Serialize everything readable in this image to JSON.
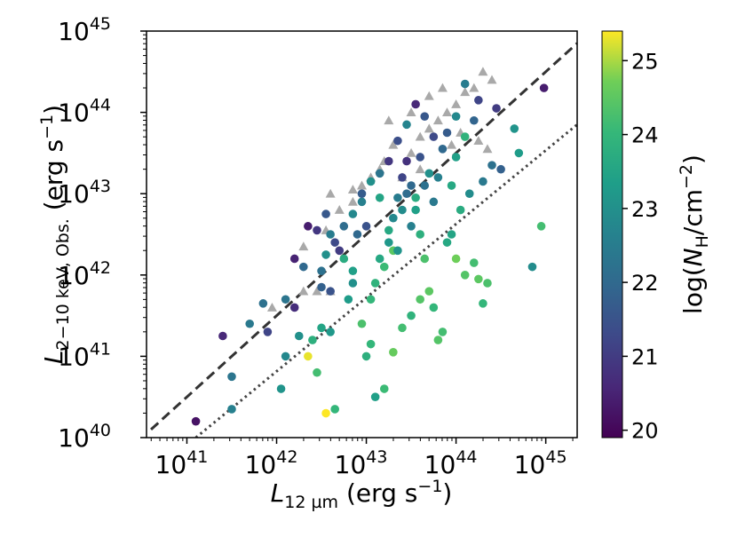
{
  "chart_data": {
    "type": "scatter",
    "title": "",
    "xlabel": "L_{12 µm} (erg s^{-1})",
    "ylabel": "L_{2-10 keV, Obs.} (erg s^{-1})",
    "xscale": "log",
    "yscale": "log",
    "xlim": [
      40.55,
      45.35
    ],
    "ylim": [
      40.0,
      45.0
    ],
    "x_ticks": [
      {
        "exp": 41,
        "label": "10",
        "sup": "41"
      },
      {
        "exp": 42,
        "label": "10",
        "sup": "42"
      },
      {
        "exp": 43,
        "label": "10",
        "sup": "43"
      },
      {
        "exp": 44,
        "label": "10",
        "sup": "44"
      },
      {
        "exp": 45,
        "label": "10",
        "sup": "45"
      }
    ],
    "y_ticks": [
      {
        "exp": 40,
        "label": "10",
        "sup": "40"
      },
      {
        "exp": 41,
        "label": "10",
        "sup": "41"
      },
      {
        "exp": 42,
        "label": "10",
        "sup": "42"
      },
      {
        "exp": 43,
        "label": "10",
        "sup": "43"
      },
      {
        "exp": 44,
        "label": "10",
        "sup": "44"
      },
      {
        "exp": 45,
        "label": "10",
        "sup": "45"
      }
    ],
    "colorbar": {
      "label": "log(N_H/cm^{-2})",
      "range": [
        19.9,
        25.4
      ],
      "ticks": [
        "20",
        "21",
        "22",
        "23",
        "24",
        "25"
      ],
      "colormap": "viridis"
    },
    "lines": [
      {
        "style": "dashed",
        "color": "#333333",
        "points": [
          [
            40.6,
            40.1
          ],
          [
            45.35,
            44.85
          ]
        ]
      },
      {
        "style": "dotted",
        "color": "#444444",
        "points": [
          [
            41.1,
            40.0
          ],
          [
            45.35,
            43.85
          ]
        ]
      }
    ],
    "series_upper_limits": {
      "marker": "triangle",
      "color": "#a9a9a9",
      "points": [
        [
          41.95,
          41.6
        ],
        [
          42.3,
          41.8
        ],
        [
          42.45,
          41.8
        ],
        [
          42.6,
          41.8
        ],
        [
          42.3,
          42.35
        ],
        [
          42.55,
          42.55
        ],
        [
          42.7,
          42.8
        ],
        [
          42.85,
          42.9
        ],
        [
          42.95,
          43.1
        ],
        [
          43.05,
          43.2
        ],
        [
          43.15,
          43.3
        ],
        [
          43.2,
          43.4
        ],
        [
          43.3,
          43.6
        ],
        [
          43.4,
          43.2
        ],
        [
          43.5,
          43.5
        ],
        [
          43.6,
          43.7
        ],
        [
          43.7,
          43.8
        ],
        [
          43.8,
          43.9
        ],
        [
          43.9,
          44.0
        ],
        [
          44.0,
          44.1
        ],
        [
          44.1,
          44.25
        ],
        [
          44.2,
          44.3
        ],
        [
          44.3,
          44.5
        ],
        [
          44.4,
          44.4
        ],
        [
          43.85,
          44.3
        ],
        [
          44.05,
          43.75
        ],
        [
          43.95,
          43.6
        ],
        [
          43.25,
          43.9
        ],
        [
          43.5,
          44.0
        ],
        [
          43.7,
          44.2
        ],
        [
          44.25,
          43.65
        ],
        [
          44.35,
          43.55
        ],
        [
          42.85,
          43.05
        ],
        [
          42.6,
          43.0
        ],
        [
          43.6,
          43.3
        ]
      ]
    },
    "series_detections": {
      "marker": "circle",
      "note": "x, y, log NH",
      "points": [
        [
          41.1,
          40.2,
          20.2
        ],
        [
          41.4,
          41.25,
          20.6
        ],
        [
          41.5,
          40.75,
          22.3
        ],
        [
          41.5,
          40.35,
          22.6
        ],
        [
          41.7,
          41.4,
          22.4
        ],
        [
          41.85,
          41.65,
          22.2
        ],
        [
          41.9,
          41.3,
          21.2
        ],
        [
          42.05,
          40.6,
          23.1
        ],
        [
          42.1,
          41.0,
          22.8
        ],
        [
          42.1,
          41.7,
          22.3
        ],
        [
          42.2,
          41.6,
          20.7
        ],
        [
          42.25,
          41.25,
          23.0
        ],
        [
          42.35,
          41.0,
          25.3
        ],
        [
          42.4,
          41.2,
          23.8
        ],
        [
          42.45,
          40.8,
          24.2
        ],
        [
          42.5,
          41.35,
          23.5
        ],
        [
          42.55,
          40.3,
          25.4
        ],
        [
          42.65,
          40.35,
          24.0
        ],
        [
          42.6,
          41.3,
          23.2
        ],
        [
          42.6,
          41.8,
          21.5
        ],
        [
          42.2,
          42.2,
          20.5
        ],
        [
          42.35,
          42.6,
          20.4
        ],
        [
          42.3,
          42.1,
          22.0
        ],
        [
          42.5,
          41.85,
          21.8
        ],
        [
          42.5,
          42.05,
          22.2
        ],
        [
          42.55,
          42.25,
          23.0
        ],
        [
          42.6,
          42.5,
          22.5
        ],
        [
          42.7,
          42.3,
          21.0
        ],
        [
          42.75,
          42.2,
          23.7
        ],
        [
          42.8,
          41.7,
          23.3
        ],
        [
          42.85,
          41.9,
          23.0
        ],
        [
          42.85,
          42.05,
          23.4
        ],
        [
          42.9,
          42.5,
          22.0
        ],
        [
          42.95,
          42.9,
          22.6
        ],
        [
          43.0,
          42.6,
          21.5
        ],
        [
          43.05,
          41.7,
          24.0
        ],
        [
          43.1,
          41.9,
          23.9
        ],
        [
          43.15,
          42.2,
          23.6
        ],
        [
          43.2,
          42.1,
          24.1
        ],
        [
          43.25,
          42.4,
          23.2
        ],
        [
          43.3,
          42.7,
          22.8
        ],
        [
          43.35,
          42.95,
          22.5
        ],
        [
          43.4,
          43.2,
          21.2
        ],
        [
          43.45,
          43.4,
          20.8
        ],
        [
          43.5,
          43.1,
          22.0
        ],
        [
          43.55,
          42.8,
          23.4
        ],
        [
          43.6,
          42.5,
          23.8
        ],
        [
          43.65,
          42.2,
          24.3
        ],
        [
          43.7,
          41.8,
          24.5
        ],
        [
          43.75,
          41.6,
          24.0
        ],
        [
          43.8,
          41.2,
          24.4
        ],
        [
          43.85,
          41.3,
          24.2
        ],
        [
          43.0,
          41.0,
          23.8
        ],
        [
          43.05,
          41.15,
          24.0
        ],
        [
          42.95,
          41.4,
          24.3
        ],
        [
          43.1,
          40.5,
          23.4
        ],
        [
          43.2,
          40.6,
          24.1
        ],
        [
          43.3,
          41.05,
          24.6
        ],
        [
          43.4,
          41.35,
          24.2
        ],
        [
          43.5,
          41.5,
          23.9
        ],
        [
          43.6,
          41.7,
          24.4
        ],
        [
          43.3,
          42.3,
          24.5
        ],
        [
          43.9,
          42.4,
          23.6
        ],
        [
          44.0,
          42.2,
          24.7
        ],
        [
          44.1,
          42.0,
          24.4
        ],
        [
          44.2,
          42.15,
          24.2
        ],
        [
          44.25,
          41.95,
          24.5
        ],
        [
          44.3,
          41.65,
          24.0
        ],
        [
          44.35,
          41.9,
          24.3
        ],
        [
          43.95,
          42.5,
          23.5
        ],
        [
          44.05,
          42.8,
          23.7
        ],
        [
          44.15,
          43.0,
          22.9
        ],
        [
          44.3,
          43.15,
          22.4
        ],
        [
          44.4,
          43.35,
          22.2
        ],
        [
          44.5,
          43.3,
          21.8
        ],
        [
          44.65,
          43.8,
          23.1
        ],
        [
          44.7,
          43.5,
          23.3
        ],
        [
          44.85,
          42.1,
          22.9
        ],
        [
          44.95,
          42.6,
          24.2
        ],
        [
          44.98,
          44.3,
          20.4
        ],
        [
          43.95,
          43.1,
          23.6
        ],
        [
          43.85,
          43.55,
          22.0
        ],
        [
          43.75,
          43.7,
          21.3
        ],
        [
          43.65,
          43.95,
          21.6
        ],
        [
          43.55,
          44.1,
          20.6
        ],
        [
          43.45,
          43.85,
          22.7
        ],
        [
          43.35,
          43.65,
          21.4
        ],
        [
          43.25,
          43.4,
          20.9
        ],
        [
          43.15,
          43.25,
          22.3
        ],
        [
          43.05,
          43.15,
          23.0
        ],
        [
          42.95,
          43.0,
          21.7
        ],
        [
          42.85,
          42.75,
          22.8
        ],
        [
          42.75,
          42.6,
          22.1
        ],
        [
          42.65,
          42.4,
          21.3
        ],
        [
          42.55,
          42.75,
          21.6
        ],
        [
          42.45,
          42.55,
          20.9
        ],
        [
          43.75,
          42.9,
          22.4
        ],
        [
          43.8,
          43.2,
          22.6
        ],
        [
          44.0,
          43.45,
          23.4
        ],
        [
          44.1,
          43.7,
          23.9
        ],
        [
          44.2,
          43.9,
          21.9
        ],
        [
          44.25,
          44.15,
          21.2
        ],
        [
          44.1,
          44.35,
          22.5
        ],
        [
          44.45,
          44.05,
          21.0
        ],
        [
          43.6,
          43.45,
          21.5
        ],
        [
          43.7,
          43.25,
          23.0
        ],
        [
          43.9,
          43.75,
          21.7
        ],
        [
          44.0,
          43.95,
          22.8
        ],
        [
          43.4,
          42.8,
          22.9
        ],
        [
          43.5,
          42.6,
          22.6
        ],
        [
          43.55,
          42.95,
          23.7
        ],
        [
          43.65,
          43.1,
          22.2
        ],
        [
          43.25,
          42.55,
          23.6
        ],
        [
          43.15,
          42.95,
          23.5
        ],
        [
          43.45,
          43.0,
          22.1
        ],
        [
          43.35,
          42.3,
          23.1
        ]
      ]
    }
  }
}
